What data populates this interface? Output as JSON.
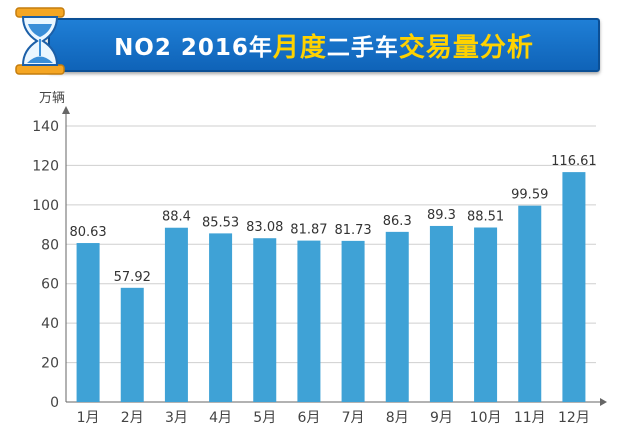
{
  "header": {
    "title_prefix": "NO2 2016年",
    "title_highlight_1": "月度",
    "title_middle": "二手车",
    "title_highlight_2": "交易量分析",
    "icon": "hourglass-icon"
  },
  "colors": {
    "bar": "#3fa2d6",
    "banner": "#1670c6",
    "highlight": "#ffd200",
    "grid": "#cfcfcf"
  },
  "chart_data": {
    "type": "bar",
    "title": "",
    "unit_label": "万辆",
    "xlabel": "",
    "ylabel": "万辆",
    "categories": [
      "1月",
      "2月",
      "3月",
      "4月",
      "5月",
      "6月",
      "7月",
      "8月",
      "9月",
      "10月",
      "11月",
      "12月"
    ],
    "values": [
      80.63,
      57.92,
      88.4,
      85.53,
      83.08,
      81.87,
      81.73,
      86.3,
      89.3,
      88.51,
      99.59,
      116.61
    ],
    "value_labels": [
      "80.63",
      "57.92",
      "88.4",
      "85.53",
      "83.08",
      "81.87",
      "81.73",
      "86.3",
      "89.3",
      "88.51",
      "99.59",
      "116.61"
    ],
    "ylim": [
      0,
      140
    ],
    "yticks": [
      0,
      20,
      40,
      60,
      80,
      100,
      120,
      140
    ],
    "grid": true,
    "legend": "none"
  }
}
